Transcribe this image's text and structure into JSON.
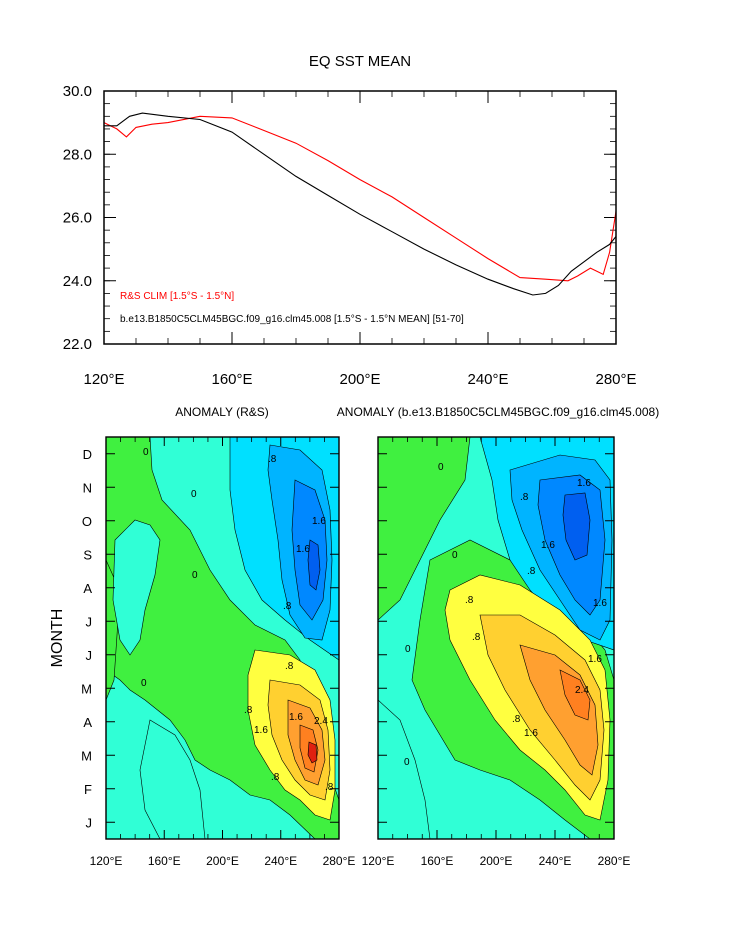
{
  "chart_data": [
    {
      "type": "line",
      "title": "EQ SST MEAN",
      "xlabel": "",
      "ylabel": "",
      "xlim": [
        120,
        280
      ],
      "ylim": [
        22,
        30
      ],
      "x_ticks": [
        120,
        160,
        200,
        240,
        280
      ],
      "x_tick_labels": [
        "120°E",
        "160°E",
        "200°E",
        "240°E",
        "280°E"
      ],
      "y_ticks": [
        22,
        24,
        26,
        28,
        30
      ],
      "y_tick_labels": [
        "22.0",
        "24.0",
        "26.0",
        "28.0",
        "30.0"
      ],
      "legend": [
        {
          "text": "R&S CLIM [1.5°S - 1.5°N]",
          "color": "#ff0000"
        },
        {
          "text": "b.e13.B1850C5CLM45BGC.f09_g16.clm45.008 [1.5°S - 1.5°N MEAN] [51-70]",
          "color": "#000000"
        }
      ],
      "series": [
        {
          "name": "R&S CLIM [1.5°S - 1.5°N]",
          "color": "#ff0000",
          "x": [
            120,
            124,
            127,
            130,
            135,
            140,
            150,
            160,
            170,
            180,
            190,
            200,
            210,
            220,
            230,
            240,
            250,
            258,
            265,
            268,
            272,
            276,
            278,
            280
          ],
          "y": [
            29.0,
            28.8,
            28.55,
            28.85,
            28.95,
            29.0,
            29.2,
            29.15,
            28.75,
            28.35,
            27.8,
            27.2,
            26.65,
            26.0,
            25.35,
            24.7,
            24.1,
            24.05,
            24.0,
            24.15,
            24.4,
            24.2,
            24.9,
            26.2
          ]
        },
        {
          "name": "b.e13.B1850C5CLM45BGC.f09_g16.clm45.008 [1.5°S - 1.5°N MEAN] [51-70]",
          "color": "#000000",
          "x": [
            120,
            124,
            128,
            132,
            140,
            150,
            160,
            170,
            180,
            190,
            200,
            210,
            220,
            230,
            240,
            248,
            254,
            258,
            262,
            266,
            270,
            274,
            278,
            280
          ],
          "y": [
            28.9,
            28.9,
            29.2,
            29.3,
            29.2,
            29.1,
            28.7,
            28.0,
            27.3,
            26.7,
            26.1,
            25.55,
            25.0,
            24.5,
            24.05,
            23.75,
            23.55,
            23.6,
            23.85,
            24.3,
            24.6,
            24.9,
            25.15,
            25.4
          ]
        }
      ]
    },
    {
      "type": "heatmap",
      "title": "ANOMALY (R&S)",
      "xlabel": "",
      "ylabel": "MONTH",
      "xlim": [
        120,
        280
      ],
      "x_ticks": [
        120,
        160,
        200,
        240,
        280
      ],
      "x_tick_labels": [
        "120°E",
        "160°E",
        "200°E",
        "240°E",
        "280°E"
      ],
      "y_tick_labels": [
        "J",
        "F",
        "M",
        "A",
        "M",
        "J",
        "J",
        "A",
        "S",
        "O",
        "N",
        "D"
      ],
      "contour_labels": [
        "0",
        "0",
        "0",
        "0",
        ".8",
        ".8",
        ".8",
        ".8",
        "1.6",
        "1.6",
        "1.6",
        "2.4",
        "1.6",
        ".8",
        ".8"
      ]
    },
    {
      "type": "heatmap",
      "title": "ANOMALY (b.e13.B1850C5CLM45BGC.f09_g16.clm45.008)",
      "xlabel": "",
      "ylabel": "",
      "xlim": [
        120,
        280
      ],
      "x_ticks": [
        120,
        160,
        200,
        240,
        280
      ],
      "x_tick_labels": [
        "120°E",
        "160°E",
        "200°E",
        "240°E",
        "280°E"
      ],
      "y_tick_labels": [],
      "contour_labels": [
        "0",
        "0",
        "0",
        "0",
        ".8",
        ".8",
        ".8",
        "1.6",
        "1.6",
        "1.6",
        "2.4",
        "1.6",
        ".8",
        ".8",
        "1.6"
      ]
    }
  ]
}
